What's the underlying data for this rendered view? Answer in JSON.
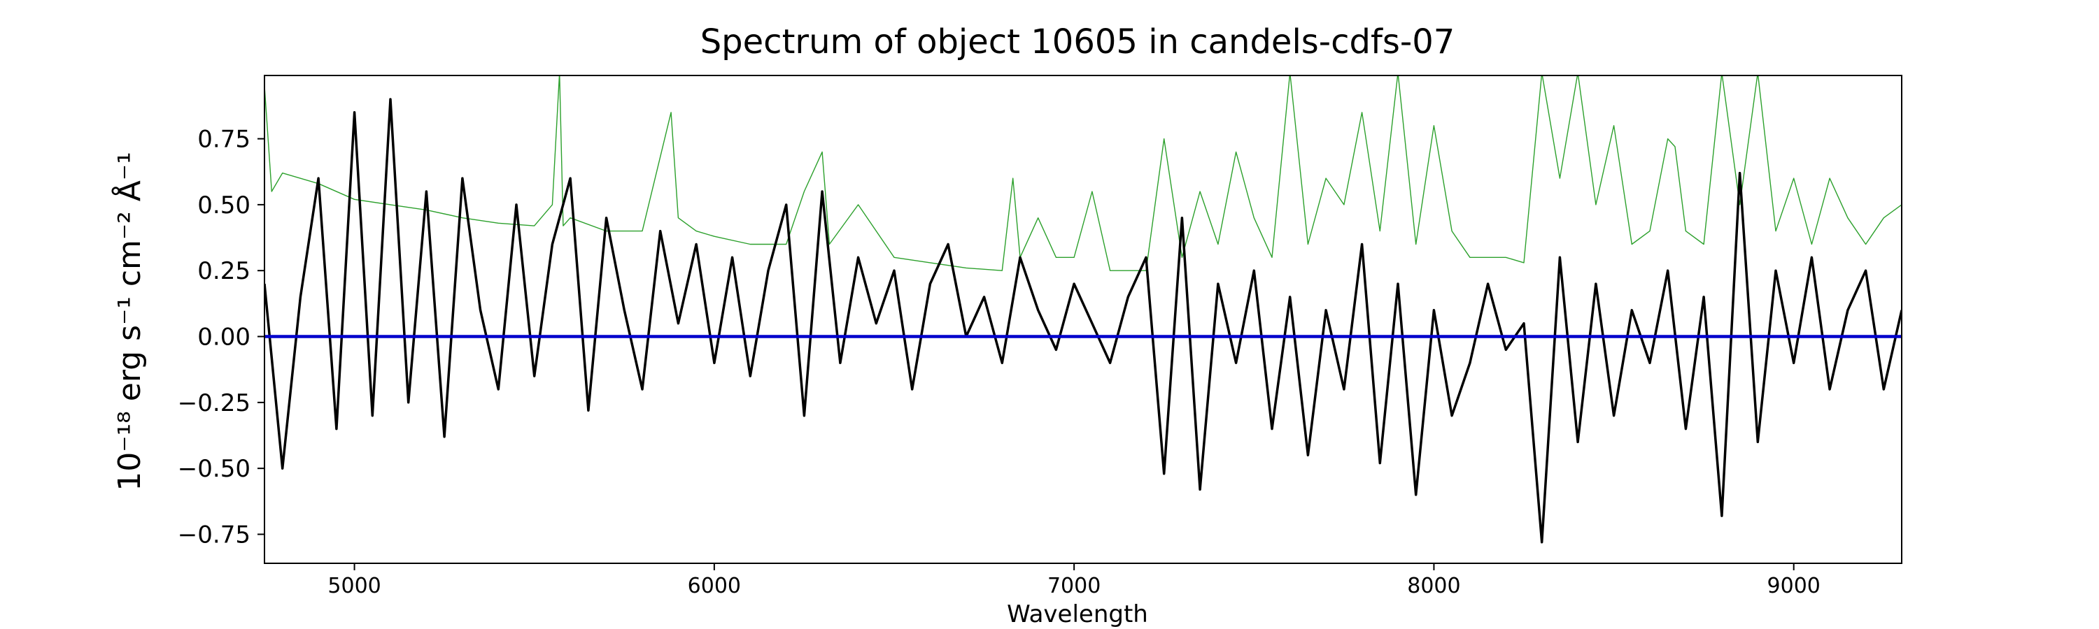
{
  "chart_data": {
    "type": "line",
    "title": "Spectrum of object 10605 in candels-cdfs-07",
    "xlabel": "Wavelength",
    "ylabel": "10⁻¹⁸ erg s⁻¹ cm⁻² Å⁻¹",
    "xlim": [
      4750,
      9300
    ],
    "ylim": [
      -0.86,
      0.99
    ],
    "xticks": [
      5000,
      6000,
      7000,
      8000,
      9000
    ],
    "yticks": [
      -0.75,
      -0.5,
      -0.25,
      0.0,
      0.25,
      0.5,
      0.75
    ],
    "yticklabels": [
      "−0.75",
      "−0.50",
      "−0.25",
      "0.00",
      "0.25",
      "0.50",
      "0.75"
    ],
    "grid": false,
    "series": [
      {
        "role": "flux",
        "color": "#000000",
        "x": [
          4750,
          4800,
          4850,
          4900,
          4950,
          5000,
          5050,
          5100,
          5150,
          5200,
          5250,
          5300,
          5350,
          5400,
          5450,
          5500,
          5550,
          5600,
          5650,
          5700,
          5750,
          5800,
          5850,
          5900,
          5950,
          6000,
          6050,
          6100,
          6150,
          6200,
          6250,
          6300,
          6350,
          6400,
          6450,
          6500,
          6550,
          6600,
          6650,
          6700,
          6750,
          6800,
          6850,
          6900,
          6950,
          7000,
          7050,
          7100,
          7150,
          7200,
          7250,
          7300,
          7350,
          7400,
          7450,
          7500,
          7550,
          7600,
          7650,
          7700,
          7750,
          7800,
          7850,
          7900,
          7950,
          8000,
          8050,
          8100,
          8150,
          8200,
          8250,
          8300,
          8350,
          8400,
          8450,
          8500,
          8550,
          8600,
          8650,
          8700,
          8750,
          8800,
          8850,
          8900,
          8950,
          9000,
          9050,
          9100,
          9150,
          9200,
          9250,
          9300
        ],
        "y": [
          0.2,
          -0.5,
          0.15,
          0.6,
          -0.35,
          0.85,
          -0.3,
          0.9,
          -0.25,
          0.55,
          -0.38,
          0.6,
          0.1,
          -0.2,
          0.5,
          -0.15,
          0.35,
          0.6,
          -0.28,
          0.45,
          0.1,
          -0.2,
          0.4,
          0.05,
          0.35,
          -0.1,
          0.3,
          -0.15,
          0.25,
          0.5,
          -0.3,
          0.55,
          -0.1,
          0.3,
          0.05,
          0.25,
          -0.2,
          0.2,
          0.35,
          0.0,
          0.15,
          -0.1,
          0.3,
          0.1,
          -0.05,
          0.2,
          0.05,
          -0.1,
          0.15,
          0.3,
          -0.52,
          0.45,
          -0.58,
          0.2,
          -0.1,
          0.25,
          -0.35,
          0.15,
          -0.45,
          0.1,
          -0.2,
          0.35,
          -0.48,
          0.2,
          -0.6,
          0.1,
          -0.3,
          -0.1,
          0.2,
          -0.05,
          0.05,
          -0.78,
          0.3,
          -0.4,
          0.2,
          -0.3,
          0.1,
          -0.1,
          0.25,
          -0.35,
          0.15,
          -0.68,
          0.62,
          -0.4,
          0.25,
          -0.1,
          0.3,
          -0.2,
          0.1,
          0.25,
          -0.2,
          0.1
        ]
      },
      {
        "role": "error",
        "color": "#2ca02c",
        "x": [
          4750,
          4770,
          4800,
          4900,
          5000,
          5100,
          5200,
          5300,
          5400,
          5500,
          5550,
          5570,
          5580,
          5600,
          5700,
          5800,
          5880,
          5900,
          5950,
          6000,
          6100,
          6200,
          6250,
          6300,
          6320,
          6400,
          6500,
          6600,
          6700,
          6800,
          6830,
          6850,
          6900,
          6950,
          7000,
          7050,
          7100,
          7200,
          7250,
          7300,
          7350,
          7400,
          7450,
          7500,
          7550,
          7600,
          7650,
          7700,
          7750,
          7800,
          7850,
          7900,
          7950,
          8000,
          8050,
          8100,
          8150,
          8200,
          8250,
          8300,
          8350,
          8400,
          8450,
          8500,
          8550,
          8600,
          8650,
          8670,
          8700,
          8750,
          8800,
          8850,
          8900,
          8950,
          9000,
          9050,
          9100,
          9150,
          9200,
          9250,
          9300
        ],
        "y": [
          0.95,
          0.55,
          0.62,
          0.58,
          0.52,
          0.5,
          0.48,
          0.45,
          0.43,
          0.42,
          0.5,
          1.0,
          0.42,
          0.45,
          0.4,
          0.4,
          0.85,
          0.45,
          0.4,
          0.38,
          0.35,
          0.35,
          0.55,
          0.7,
          0.35,
          0.5,
          0.3,
          0.28,
          0.26,
          0.25,
          0.6,
          0.3,
          0.45,
          0.3,
          0.3,
          0.55,
          0.25,
          0.25,
          0.75,
          0.3,
          0.55,
          0.35,
          0.7,
          0.45,
          0.3,
          1.0,
          0.35,
          0.6,
          0.5,
          0.85,
          0.4,
          1.0,
          0.35,
          0.8,
          0.4,
          0.3,
          0.3,
          0.3,
          0.28,
          1.0,
          0.6,
          1.0,
          0.5,
          0.8,
          0.35,
          0.4,
          0.75,
          0.72,
          0.4,
          0.35,
          1.0,
          0.5,
          1.0,
          0.4,
          0.6,
          0.35,
          0.6,
          0.45,
          0.35,
          0.45,
          0.5
        ]
      },
      {
        "role": "model",
        "color": "#0000cc",
        "x": [
          4750,
          9300
        ],
        "y": [
          0.0,
          0.0
        ]
      }
    ]
  }
}
